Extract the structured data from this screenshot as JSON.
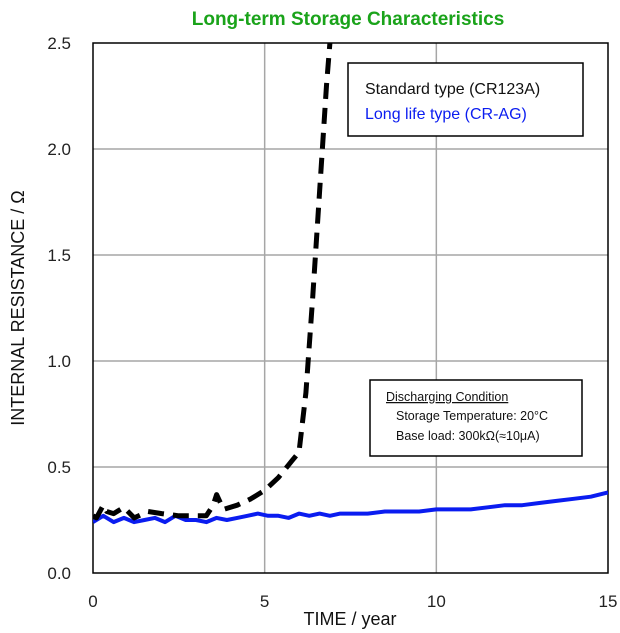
{
  "chart_data": {
    "type": "line",
    "title": "Long-term Storage Characteristics",
    "xlabel": "TIME / year",
    "ylabel": "INTERNAL RESISTANCE / Ω",
    "xlim": [
      0,
      15
    ],
    "ylim": [
      0,
      2.5
    ],
    "x_ticks": [
      "0",
      "5",
      "10",
      "15"
    ],
    "y_ticks": [
      "0.0",
      "0.5",
      "1.0",
      "1.5",
      "2.0",
      "2.5"
    ],
    "grid": true,
    "legend_position": "top-right",
    "series": [
      {
        "name": "Standard type (CR123A)",
        "color": "#000000",
        "style": "dashed",
        "x": [
          0,
          0.1,
          0.3,
          0.4,
          0.6,
          0.9,
          1.2,
          1.6,
          2.0,
          2.5,
          3.0,
          3.3,
          3.5,
          3.6,
          3.8,
          4.2,
          4.6,
          5.0,
          5.4,
          5.8,
          6.0,
          6.2,
          6.4,
          6.6,
          6.8,
          7.0
        ],
        "values": [
          0.27,
          0.26,
          0.32,
          0.29,
          0.28,
          0.31,
          0.26,
          0.29,
          0.28,
          0.27,
          0.27,
          0.27,
          0.32,
          0.37,
          0.3,
          0.32,
          0.35,
          0.39,
          0.45,
          0.53,
          0.57,
          0.85,
          1.3,
          1.8,
          2.3,
          2.7
        ]
      },
      {
        "name": "Long life type (CR-AG)",
        "color": "#0a1cf0",
        "style": "solid",
        "x": [
          0,
          0.3,
          0.6,
          0.9,
          1.2,
          1.5,
          1.8,
          2.1,
          2.4,
          2.7,
          3.0,
          3.3,
          3.6,
          3.9,
          4.2,
          4.5,
          4.8,
          5.1,
          5.4,
          5.7,
          6.0,
          6.3,
          6.6,
          6.9,
          7.2,
          7.5,
          8.0,
          8.5,
          9.0,
          9.5,
          10.0,
          10.5,
          11.0,
          11.5,
          12.0,
          12.5,
          13.0,
          13.5,
          14.0,
          14.5,
          15.0
        ],
        "values": [
          0.24,
          0.27,
          0.24,
          0.26,
          0.24,
          0.25,
          0.26,
          0.24,
          0.27,
          0.25,
          0.25,
          0.24,
          0.26,
          0.25,
          0.26,
          0.27,
          0.28,
          0.27,
          0.27,
          0.26,
          0.28,
          0.27,
          0.28,
          0.27,
          0.28,
          0.28,
          0.28,
          0.29,
          0.29,
          0.29,
          0.3,
          0.3,
          0.3,
          0.31,
          0.32,
          0.32,
          0.33,
          0.34,
          0.35,
          0.36,
          0.38
        ]
      }
    ],
    "annotation": {
      "heading": "Discharging Condition",
      "line1": "Storage Temperature: 20°C",
      "line2": "Base load: 300kΩ(≈10μA)"
    }
  },
  "colors": {
    "title": "#1aa31a",
    "grid": "#a6a6a6",
    "axis": "#000000"
  }
}
